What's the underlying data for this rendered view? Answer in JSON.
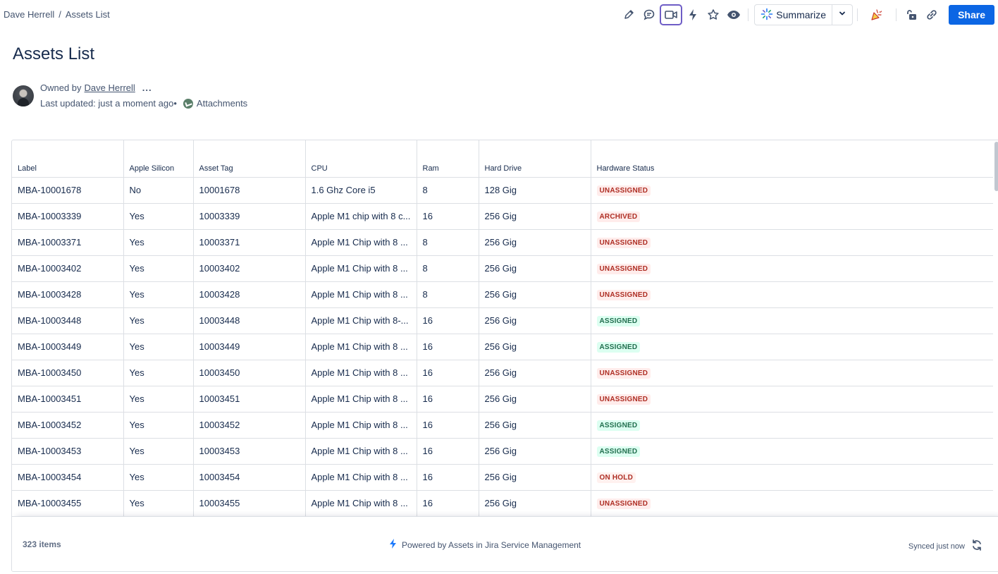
{
  "breadcrumb": {
    "owner": "Dave Herrell",
    "separator": "/",
    "page": "Assets List"
  },
  "toolbar": {
    "summarize_label": "Summarize",
    "share_label": "Share",
    "icons": [
      "pencil-icon",
      "comment-icon",
      "video-icon",
      "lightning-icon",
      "star-icon",
      "eye-icon",
      "sparkle-icon",
      "chevron-down-icon",
      "confetti-icon",
      "unlock-icon",
      "link-icon"
    ]
  },
  "page": {
    "title": "Assets List"
  },
  "meta": {
    "owned_by_label": "Owned by",
    "owner_name": "Dave Herrell",
    "more": "...",
    "last_updated": "Last updated: just a moment ago",
    "bullet": "•",
    "attachments_label": "Attachments"
  },
  "table": {
    "headers": [
      "Label",
      "Apple Silicon",
      "Asset Tag",
      "CPU",
      "Ram",
      "Hard Drive",
      "Hardware Status"
    ],
    "rows": [
      [
        "MBA-10001678",
        "No",
        "10001678",
        "1.6 Ghz Core i5",
        "8",
        "128 Gig",
        "UNASSIGNED"
      ],
      [
        "MBA-10003339",
        "Yes",
        "10003339",
        "Apple M1 chip with 8 c...",
        "16",
        "256 Gig",
        "ARCHIVED"
      ],
      [
        "MBA-10003371",
        "Yes",
        "10003371",
        "Apple M1 Chip with 8 ...",
        "8",
        "256 Gig",
        "UNASSIGNED"
      ],
      [
        "MBA-10003402",
        "Yes",
        "10003402",
        "Apple M1 Chip with 8 ...",
        "8",
        "256 Gig",
        "UNASSIGNED"
      ],
      [
        "MBA-10003428",
        "Yes",
        "10003428",
        "Apple M1 Chip with 8 ...",
        "8",
        "256 Gig",
        "UNASSIGNED"
      ],
      [
        "MBA-10003448",
        "Yes",
        "10003448",
        "Apple M1 Chip with 8-...",
        "16",
        "256 Gig",
        "ASSIGNED"
      ],
      [
        "MBA-10003449",
        "Yes",
        "10003449",
        "Apple M1 Chip with 8 ...",
        "16",
        "256 Gig",
        "ASSIGNED"
      ],
      [
        "MBA-10003450",
        "Yes",
        "10003450",
        "Apple M1 Chip with 8 ...",
        "16",
        "256 Gig",
        "UNASSIGNED"
      ],
      [
        "MBA-10003451",
        "Yes",
        "10003451",
        "Apple M1 Chip with 8 ...",
        "16",
        "256 Gig",
        "UNASSIGNED"
      ],
      [
        "MBA-10003452",
        "Yes",
        "10003452",
        "Apple M1 Chip with 8 ...",
        "16",
        "256 Gig",
        "ASSIGNED"
      ],
      [
        "MBA-10003453",
        "Yes",
        "10003453",
        "Apple M1 Chip with 8 ...",
        "16",
        "256 Gig",
        "ASSIGNED"
      ],
      [
        "MBA-10003454",
        "Yes",
        "10003454",
        "Apple M1 Chip with 8 ...",
        "16",
        "256 Gig",
        "ON HOLD"
      ],
      [
        "MBA-10003455",
        "Yes",
        "10003455",
        "Apple M1 Chip with 8 ...",
        "16",
        "256 Gig",
        "UNASSIGNED"
      ]
    ],
    "status_colors": {
      "UNASSIGNED": "#ae2e24",
      "ARCHIVED": "#ae2e24",
      "ON HOLD": "#ae2e24",
      "ASSIGNED": "#216e4e"
    }
  },
  "footer": {
    "items_count": "323 items",
    "powered_by": "Powered by Assets in Jira Service Management",
    "synced": "Synced just now"
  },
  "colors": {
    "accent": "#0c66e4",
    "active_outline": "#6e5dc6"
  }
}
